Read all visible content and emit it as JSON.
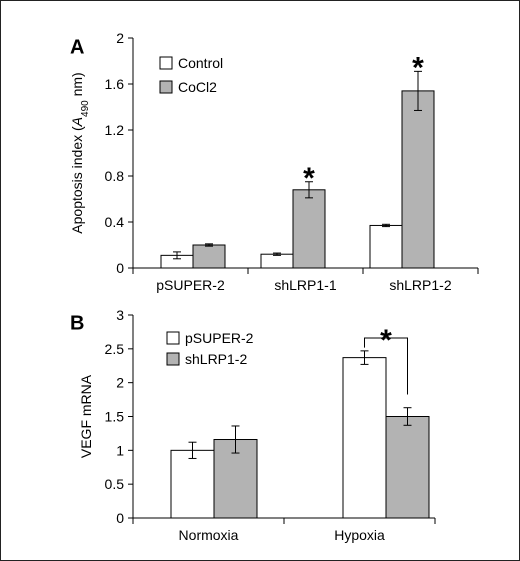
{
  "chart_data": [
    {
      "panel": "A",
      "type": "bar",
      "ylabel_main": "Apoptosis index (",
      "ylabel_var": "A",
      "ylabel_sub": "490",
      "ylabel_tail": " nm)",
      "ylim": [
        0,
        2
      ],
      "yticks": [
        "0",
        "0.4",
        "0.8",
        "1.2",
        "1.6",
        "2"
      ],
      "ytick_values": [
        0,
        0.4,
        0.8,
        1.2,
        1.6,
        2
      ],
      "categories": [
        "pSUPER-2",
        "shLRP1-1",
        "shLRP1-2"
      ],
      "legend_position": "top-left",
      "series": [
        {
          "name": "Control",
          "color": "#ffffff",
          "values": [
            0.11,
            0.12,
            0.37
          ],
          "errors": [
            0.03,
            0.01,
            0.01
          ]
        },
        {
          "name": "CoCl2",
          "color": "#b3b3b3",
          "values": [
            0.2,
            0.68,
            1.54
          ],
          "errors": [
            0.01,
            0.07,
            0.17
          ]
        }
      ],
      "annotations": [
        {
          "text": "*",
          "category_index": 1,
          "series_index": 1,
          "y": 0.87
        },
        {
          "text": "*",
          "category_index": 2,
          "series_index": 1,
          "y": 1.83
        }
      ]
    },
    {
      "panel": "B",
      "type": "bar",
      "ylabel_main": "VEGF mRNA",
      "ylim": [
        0,
        3
      ],
      "yticks": [
        "0",
        "0.5",
        "1",
        "1.5",
        "2",
        "2.5",
        "3"
      ],
      "ytick_values": [
        0,
        0.5,
        1,
        1.5,
        2,
        2.5,
        3
      ],
      "categories": [
        "Normoxia",
        "Hypoxia"
      ],
      "legend_position": "top-left",
      "series": [
        {
          "name": "pSUPER-2",
          "color": "#ffffff",
          "values": [
            1.0,
            2.37
          ],
          "errors": [
            0.12,
            0.1
          ]
        },
        {
          "name": "shLRP1-2",
          "color": "#b3b3b3",
          "values": [
            1.16,
            1.5
          ],
          "errors": [
            0.2,
            0.13
          ]
        }
      ],
      "annotations": [
        {
          "text": "*",
          "category_index": 1,
          "bracket": true,
          "y": 2.78
        }
      ]
    }
  ]
}
